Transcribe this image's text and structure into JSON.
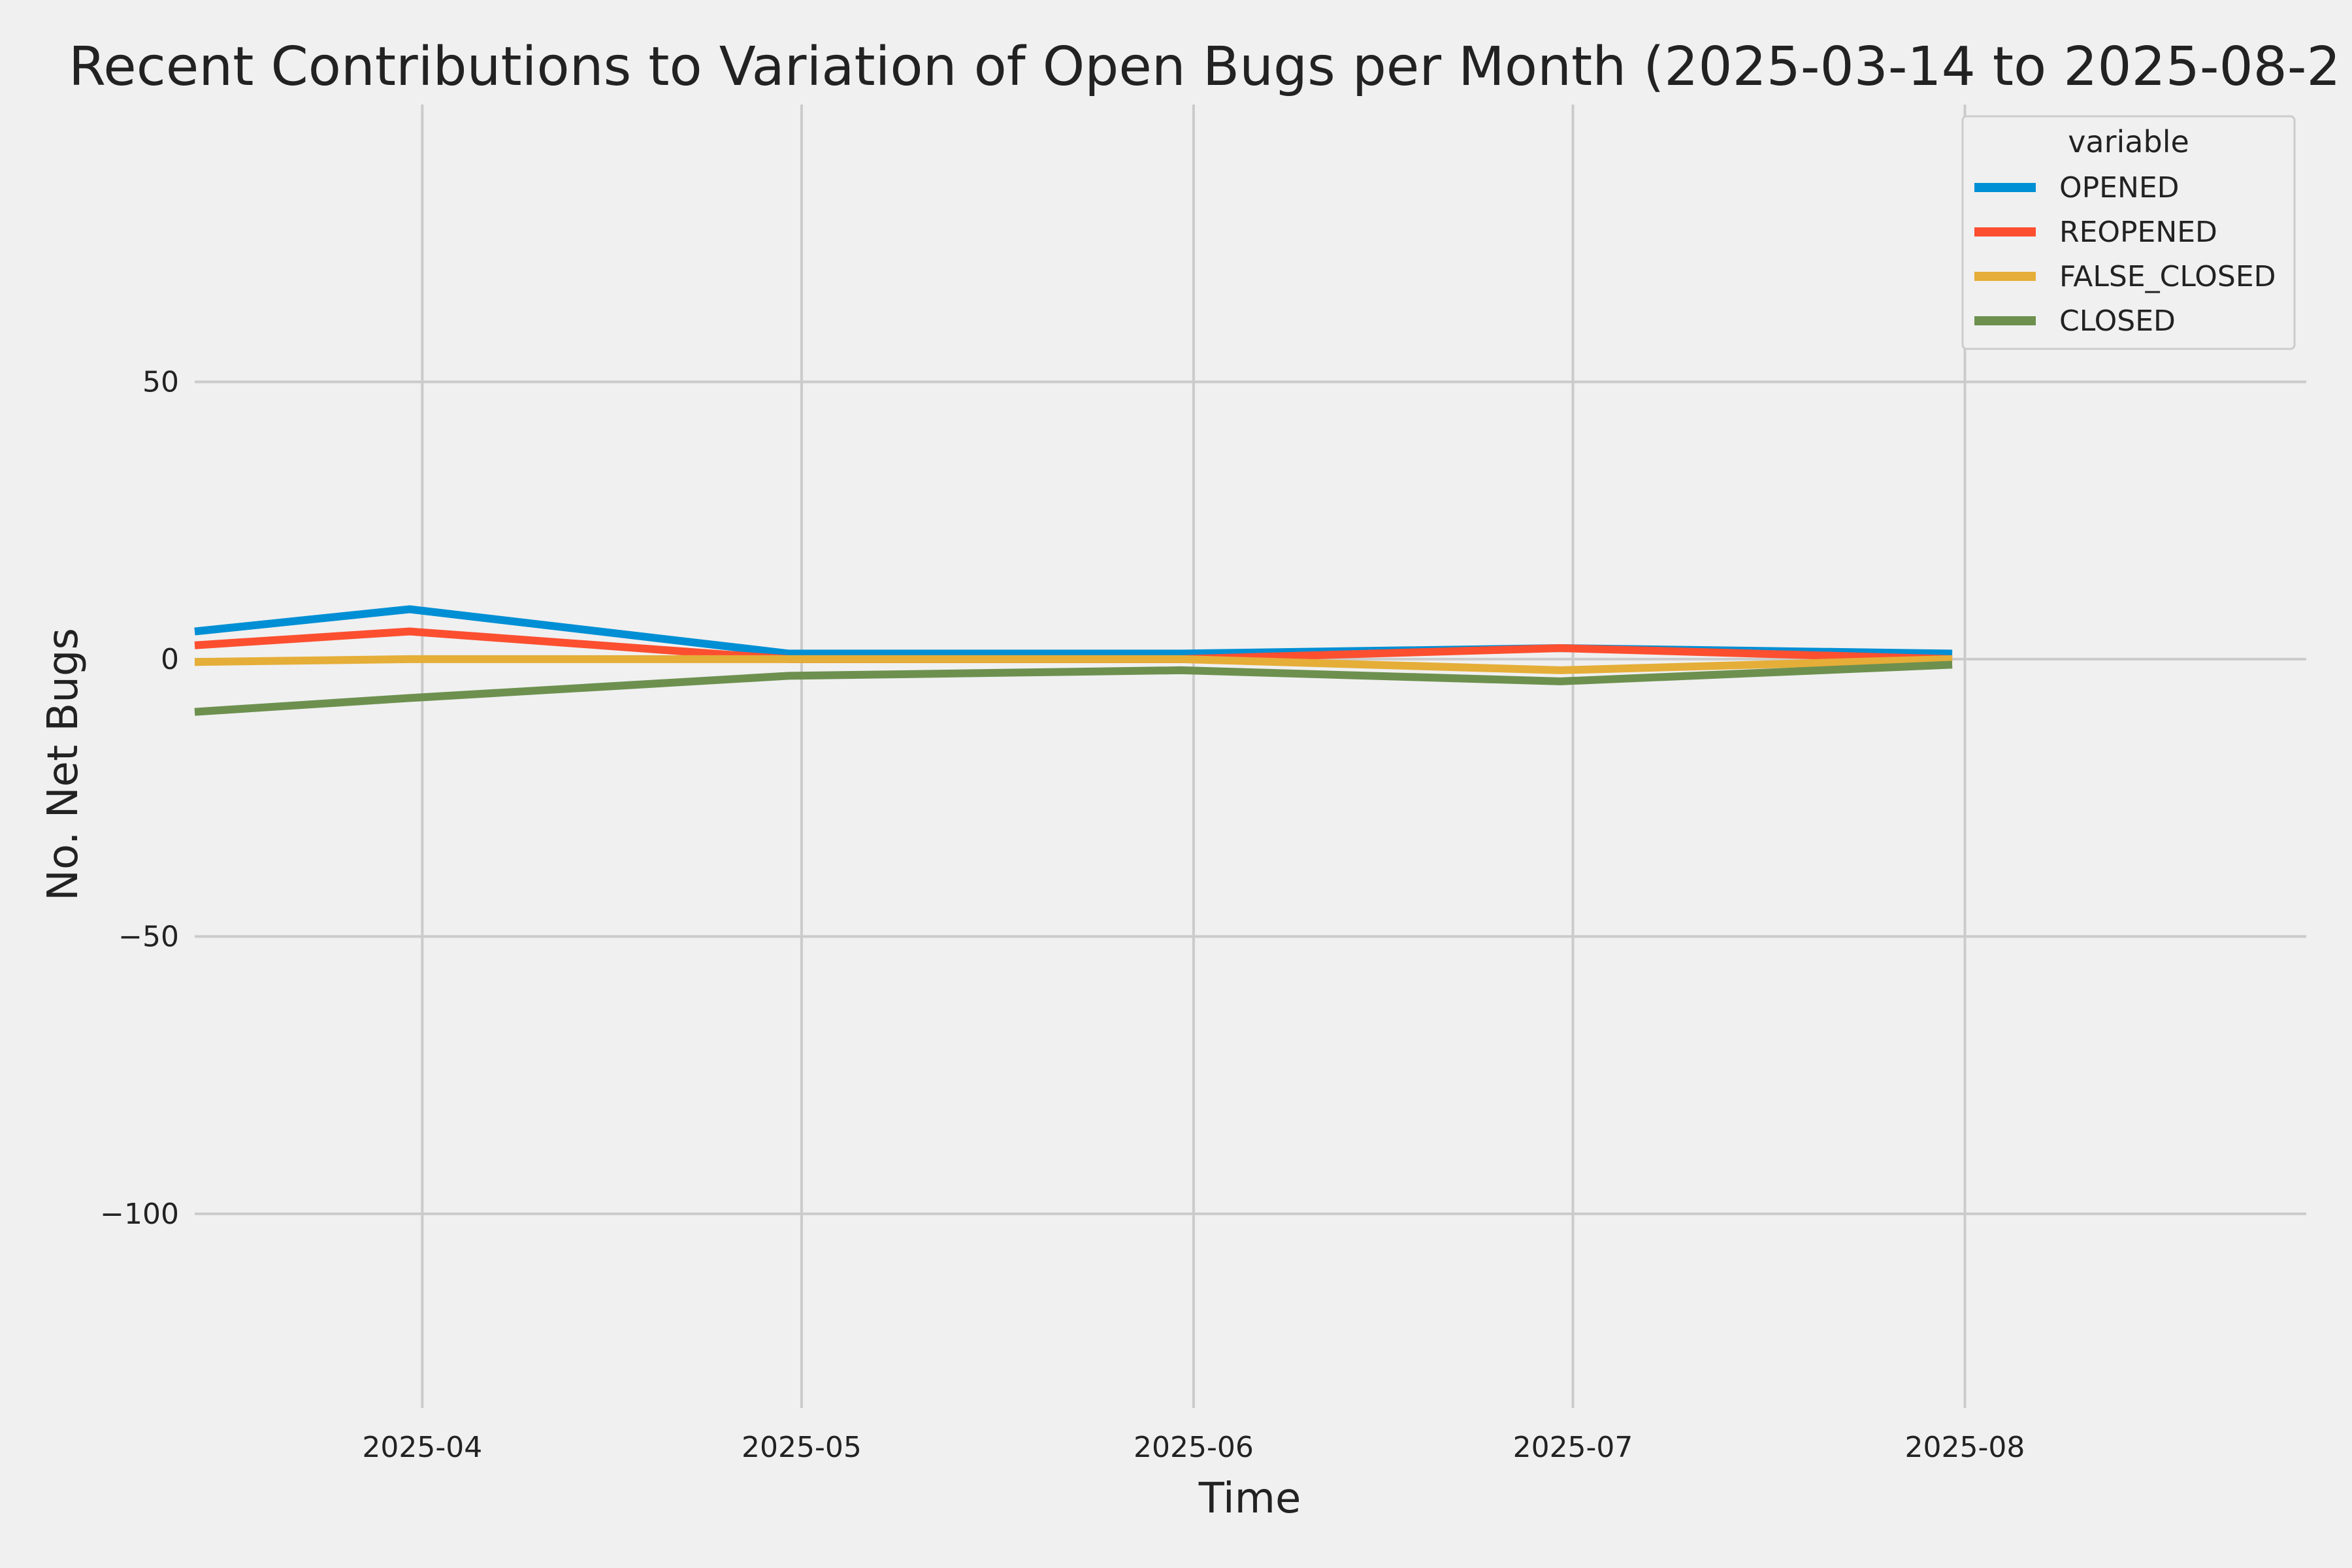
{
  "chart_data": {
    "type": "line",
    "title": "Recent Contributions to Variation of Open Bugs per Month (2025-03-14 to 2025-08-2",
    "xlabel": "Time",
    "ylabel": "No. Net Bugs",
    "x": [
      "2025-03-14",
      "2025-03-31",
      "2025-04-30",
      "2025-05-31",
      "2025-06-30",
      "2025-07-31"
    ],
    "x_ticks": [
      "2025-04",
      "2025-05",
      "2025-06",
      "2025-07",
      "2025-08"
    ],
    "x_range": [
      "2025-03-14",
      "2025-08-28"
    ],
    "ylim": [
      -135,
      100
    ],
    "y_ticks": [
      50,
      0,
      -50,
      -100
    ],
    "y_tick_labels": [
      "50",
      "0",
      "−50",
      "−100"
    ],
    "grid": true,
    "legend": {
      "title": "variable",
      "placement": "top-right"
    },
    "series": [
      {
        "name": "OPENED",
        "color": "#008fd5",
        "values": [
          5,
          9,
          1,
          1,
          2,
          1
        ]
      },
      {
        "name": "REOPENED",
        "color": "#fc4f30",
        "values": [
          2.5,
          5,
          0,
          0,
          2,
          0
        ]
      },
      {
        "name": "FALSE_CLOSED",
        "color": "#e5ae38",
        "values": [
          -0.5,
          0,
          0,
          0,
          -2,
          0
        ]
      },
      {
        "name": "CLOSED",
        "color": "#6d904f",
        "values": [
          -9.5,
          -7,
          -3,
          -2,
          -4,
          -1
        ]
      }
    ]
  }
}
